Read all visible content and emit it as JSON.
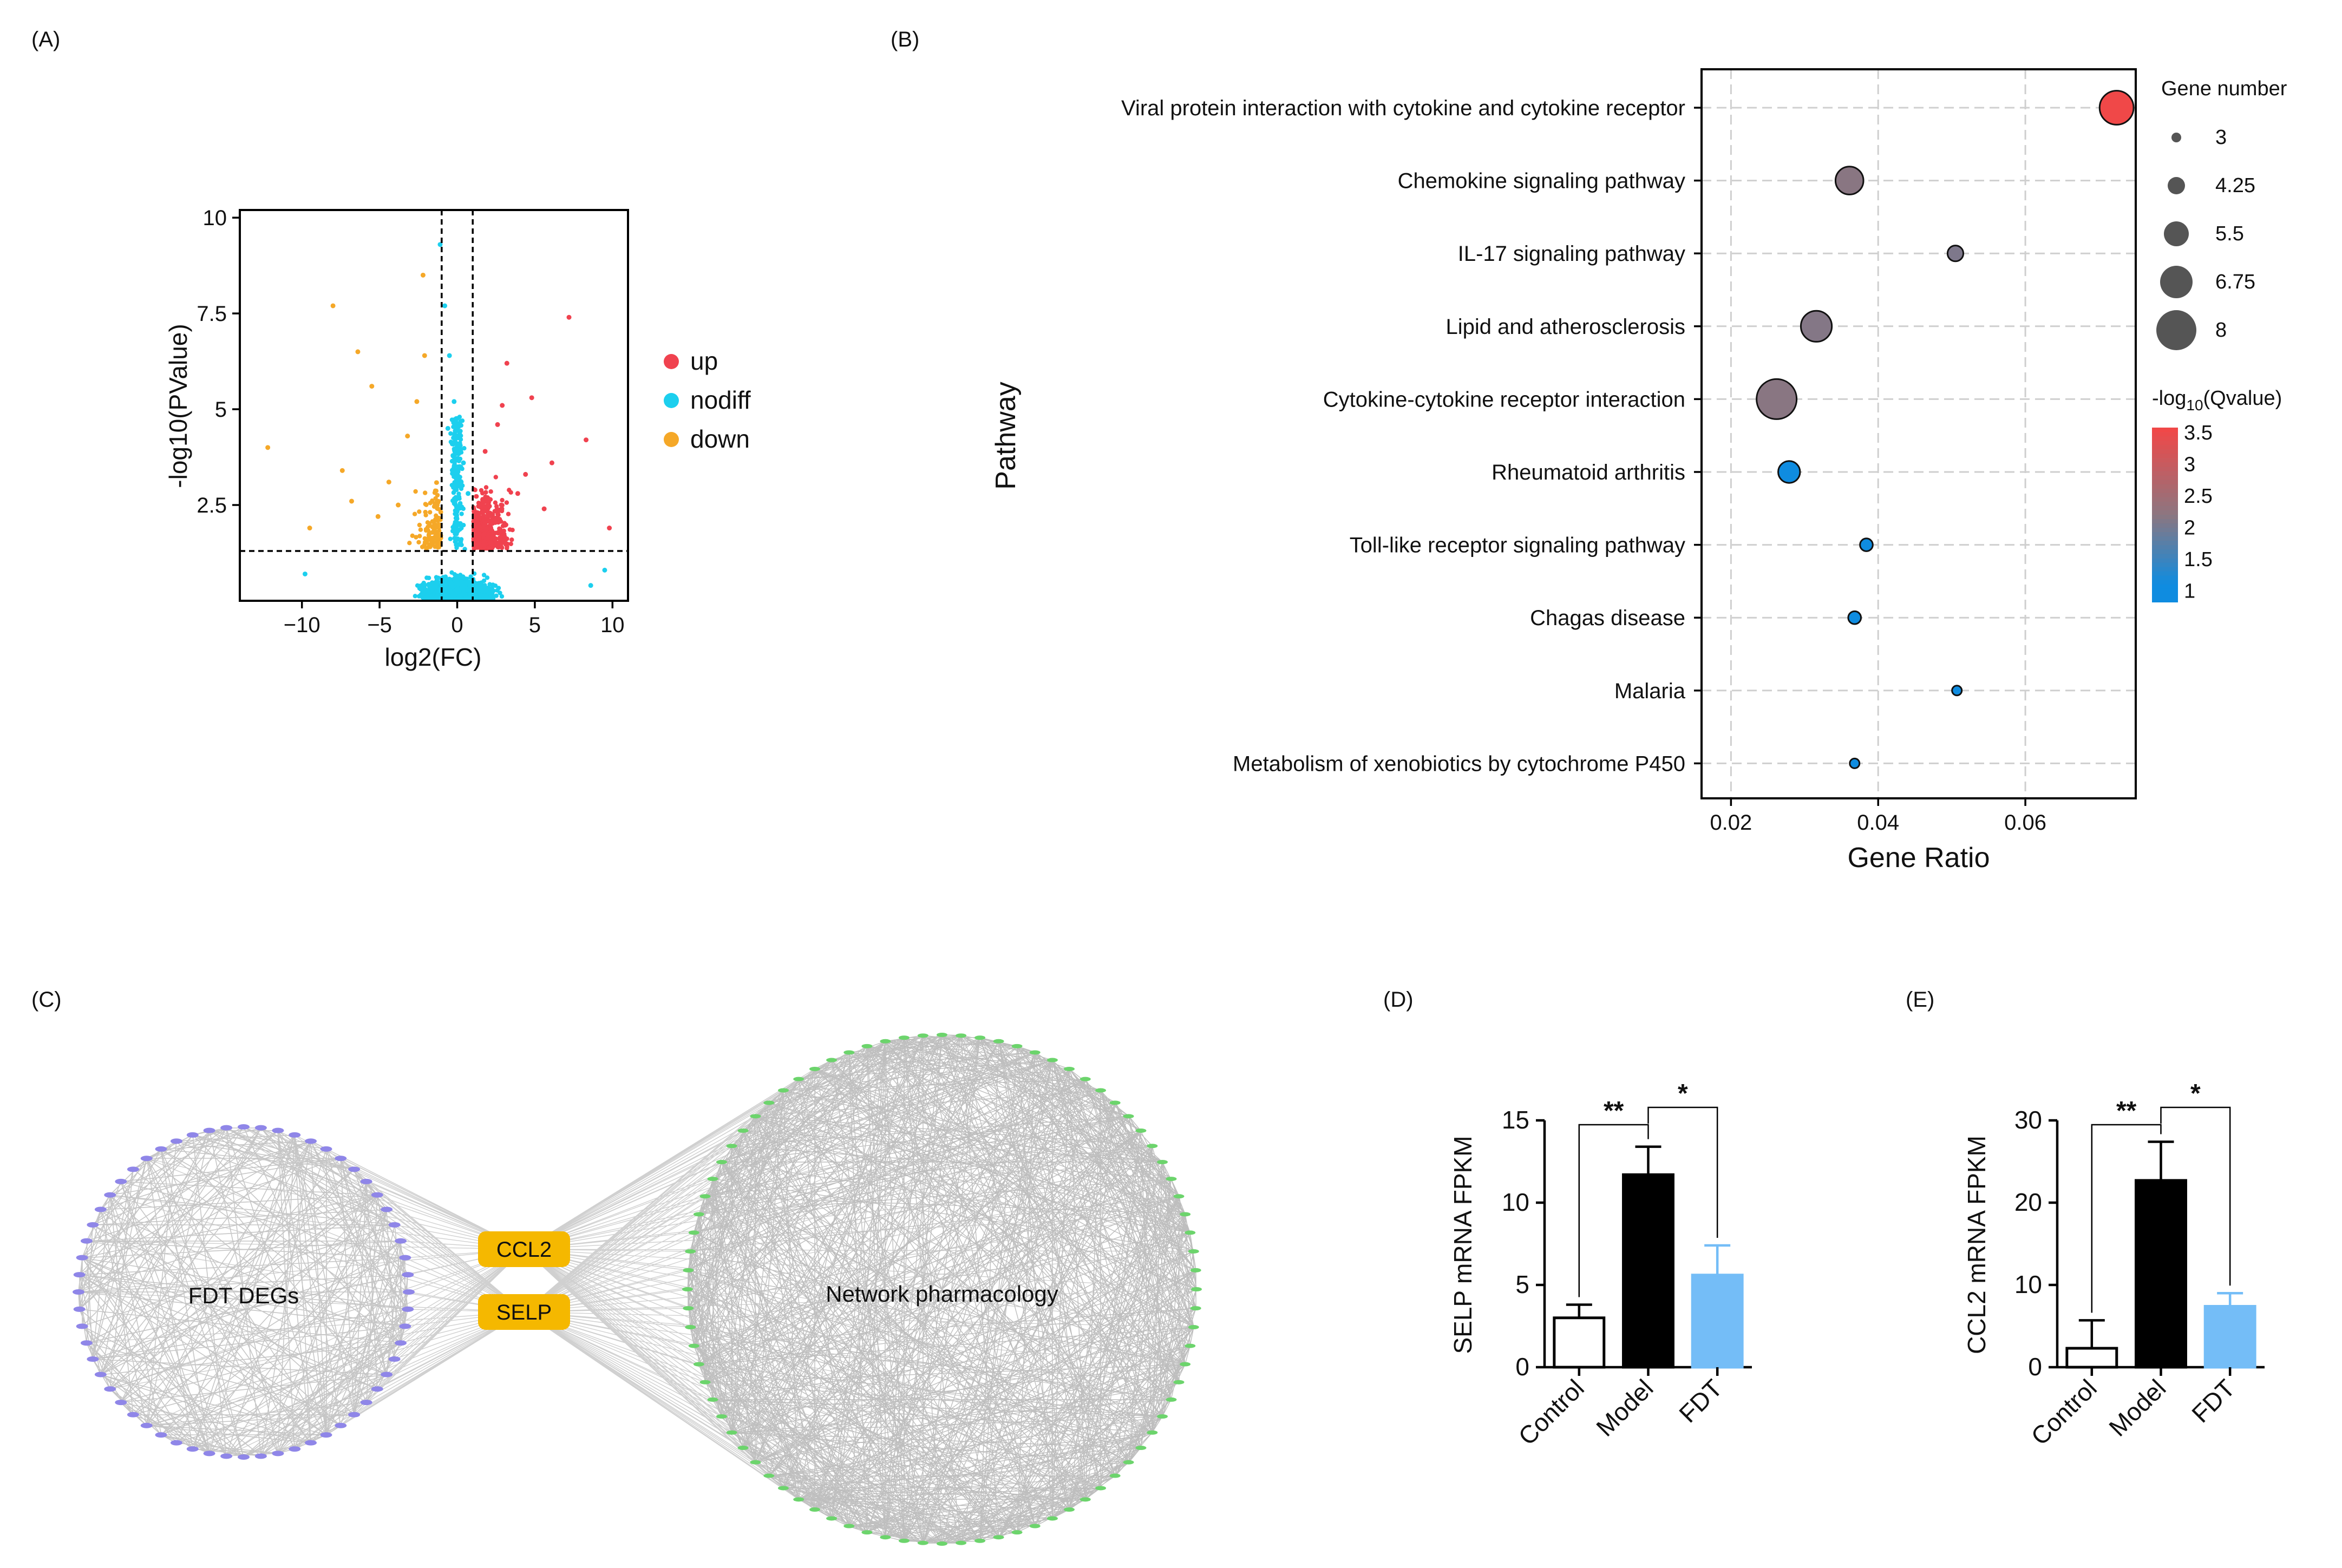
{
  "panels": {
    "a": {
      "label": "(A)"
    },
    "b": {
      "label": "(B)"
    },
    "c": {
      "label": "(C)"
    },
    "d": {
      "label": "(D)"
    },
    "e": {
      "label": "(E)"
    }
  },
  "chart_data": [
    {
      "panel": "A",
      "type": "scatter",
      "xlabel": "log2(FC)",
      "ylabel": "-log10(PValue)",
      "xlim": [
        -14,
        11
      ],
      "ylim": [
        0,
        10.2
      ],
      "xticks": [
        "−10",
        "−5",
        "0",
        "5",
        "10"
      ],
      "xtick_values": [
        -10,
        -5,
        0,
        5,
        10
      ],
      "yticks": [
        "2.5",
        "5",
        "7.5",
        "10"
      ],
      "ytick_values": [
        2.5,
        5,
        7.5,
        10
      ],
      "thresholds": {
        "log2fc": [
          -1,
          1
        ],
        "neg_log10_p": 1.3
      },
      "legend": [
        {
          "name": "up",
          "color": "#f0424f"
        },
        {
          "name": "nodiff",
          "color": "#1ccfee"
        },
        {
          "name": "down",
          "color": "#f5a828"
        }
      ],
      "highlight_points": {
        "up": [
          [
            7.2,
            7.4
          ],
          [
            8.3,
            4.2
          ],
          [
            9.8,
            1.9
          ],
          [
            6.1,
            3.6
          ],
          [
            4.8,
            5.3
          ],
          [
            3.2,
            6.2
          ],
          [
            2.6,
            4.6
          ],
          [
            1.8,
            3.9
          ],
          [
            3.9,
            2.8
          ],
          [
            5.6,
            2.4
          ],
          [
            4.4,
            3.3
          ],
          [
            2.9,
            5.1
          ]
        ],
        "down": [
          [
            -8,
            7.7
          ],
          [
            -12.2,
            4.0
          ],
          [
            -9.5,
            1.9
          ],
          [
            -6.4,
            6.5
          ],
          [
            -5.5,
            5.6
          ],
          [
            -4.4,
            3.1
          ],
          [
            -3.2,
            4.3
          ],
          [
            -2.6,
            5.2
          ],
          [
            -2.1,
            6.4
          ],
          [
            -6.8,
            2.6
          ],
          [
            -5.1,
            2.2
          ],
          [
            -7.4,
            3.4
          ],
          [
            -3.8,
            2.5
          ],
          [
            -2.2,
            8.5
          ]
        ],
        "nodiff": [
          [
            -1.1,
            9.3
          ],
          [
            -0.8,
            7.7
          ],
          [
            -0.5,
            6.4
          ],
          [
            -0.2,
            5.2
          ],
          [
            0.4,
            3.6
          ],
          [
            0.7,
            2.8
          ],
          [
            -0.6,
            4.5
          ],
          [
            9.5,
            0.8
          ],
          [
            -9.8,
            0.7
          ],
          [
            8.6,
            0.4
          ]
        ]
      }
    },
    {
      "panel": "B",
      "type": "scatter",
      "xlabel": "Gene Ratio",
      "ylabel": "Pathway",
      "xlim": [
        0.016,
        0.075
      ],
      "xticks": [
        "0.02",
        "0.04",
        "0.06"
      ],
      "xtick_values": [
        0.02,
        0.04,
        0.06
      ],
      "categories": [
        "Viral protein interaction with cytokine and cytokine receptor",
        "Chemokine signaling pathway",
        "IL-17 signaling pathway",
        "Lipid and atherosclerosis",
        "Cytokine-cytokine receptor interaction",
        "Rheumatoid arthritis",
        "Toll-like receptor signaling pathway",
        "Chagas disease",
        "Malaria",
        "Metabolism of xenobiotics by cytochrome P450"
      ],
      "gene_ratio": [
        0.0724,
        0.0361,
        0.0505,
        0.0316,
        0.0262,
        0.0279,
        0.0384,
        0.0368,
        0.0507,
        0.0368
      ],
      "gene_number": [
        7,
        6,
        4,
        6.5,
        8,
        5,
        3.5,
        3.5,
        3,
        3
      ],
      "neg_log10_qvalue": [
        3.5,
        2.1,
        2.0,
        2.05,
        2.1,
        1.0,
        0.95,
        1.0,
        0.9,
        0.85
      ],
      "size_legend": {
        "title": "Gene number",
        "values": [
          "3",
          "4.25",
          "5.5",
          "6.75",
          "8"
        ]
      },
      "color_legend": {
        "title_prefix": "-log",
        "title_sub": "10",
        "title_suffix": "(Qvalue)",
        "ticks": [
          "3.5",
          "3",
          "2.5",
          "2",
          "1.5",
          "1"
        ],
        "tick_values": [
          3.5,
          3,
          2.5,
          2,
          1.5,
          1
        ],
        "low_color": "#0f8ce0",
        "mid_color": "#8c7680",
        "high_color": "#f04848"
      },
      "grid": true
    },
    {
      "panel": "D",
      "type": "bar",
      "categories": [
        "Control",
        "Model",
        "FDT"
      ],
      "values": [
        3.0,
        11.7,
        5.6
      ],
      "errors": [
        0.8,
        1.7,
        1.8
      ],
      "ylabel": "SELP mRNA FPKM",
      "ylim": [
        0,
        15
      ],
      "yticks": [
        "0",
        "5",
        "10",
        "15"
      ],
      "ytick_values": [
        0,
        5,
        10,
        15
      ],
      "colors": [
        "#ffffff",
        "#000000",
        "#74bdf7"
      ],
      "significance": [
        {
          "pair": [
            "Control",
            "Model"
          ],
          "label": "**"
        },
        {
          "pair": [
            "Model",
            "FDT"
          ],
          "label": "*"
        }
      ]
    },
    {
      "panel": "E",
      "type": "bar",
      "categories": [
        "Control",
        "Model",
        "FDT"
      ],
      "values": [
        2.3,
        22.7,
        7.4
      ],
      "errors": [
        3.4,
        4.7,
        1.6
      ],
      "ylabel": "CCL2 mRNA FPKM",
      "ylim": [
        0,
        30
      ],
      "yticks": [
        "0",
        "10",
        "20",
        "30"
      ],
      "ytick_values": [
        0,
        10,
        20,
        30
      ],
      "colors": [
        "#ffffff",
        "#000000",
        "#74bdf7"
      ],
      "significance": [
        {
          "pair": [
            "Control",
            "Model"
          ],
          "label": "**"
        },
        {
          "pair": [
            "Model",
            "FDT"
          ],
          "label": "*"
        }
      ]
    }
  ],
  "network": {
    "left_label": "FDT DEGs",
    "right_label": "Network pharmacology",
    "hubs": [
      "CCL2",
      "SELP"
    ],
    "left_node_color": "#8f86e8",
    "right_node_color": "#6cd46c",
    "hub_color": "#f5b800",
    "left_node_count": 60,
    "right_node_count": 84
  }
}
